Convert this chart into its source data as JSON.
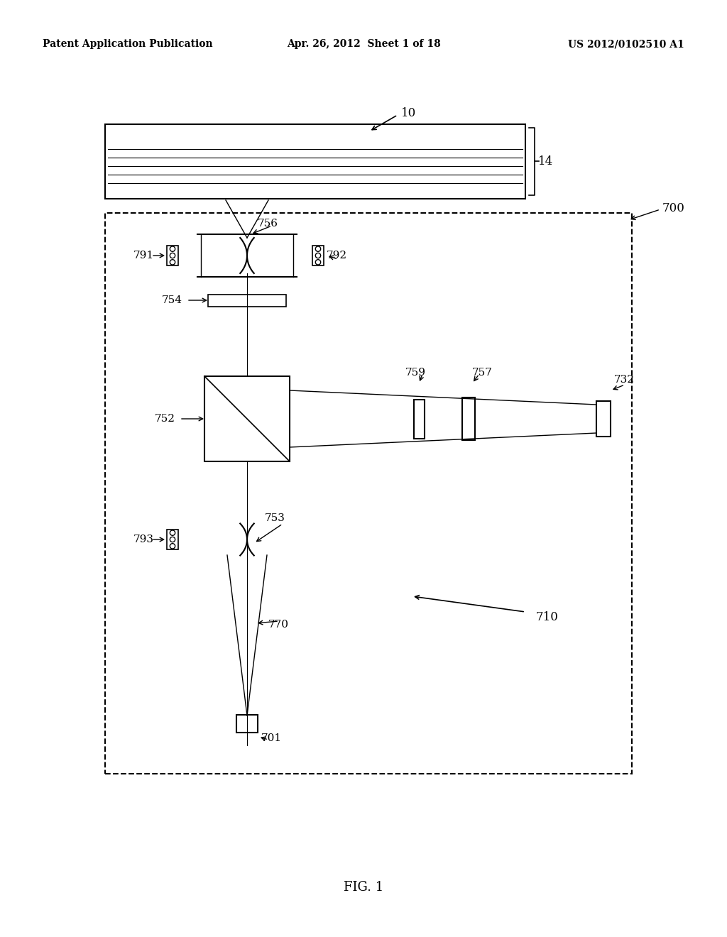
{
  "background_color": "#ffffff",
  "header_left": "Patent Application Publication",
  "header_center": "Apr. 26, 2012  Sheet 1 of 18",
  "header_right": "US 2012/0102510 A1",
  "footer_label": "FIG. 1",
  "label_10": "10",
  "label_14": "14",
  "label_700": "700",
  "label_756": "756",
  "label_791": "791",
  "label_792": "792",
  "label_754": "754",
  "label_759": "759",
  "label_757": "757",
  "label_732": "732",
  "label_752": "752",
  "label_793": "793",
  "label_753": "753",
  "label_770": "770",
  "label_701": "701",
  "label_710": "710"
}
